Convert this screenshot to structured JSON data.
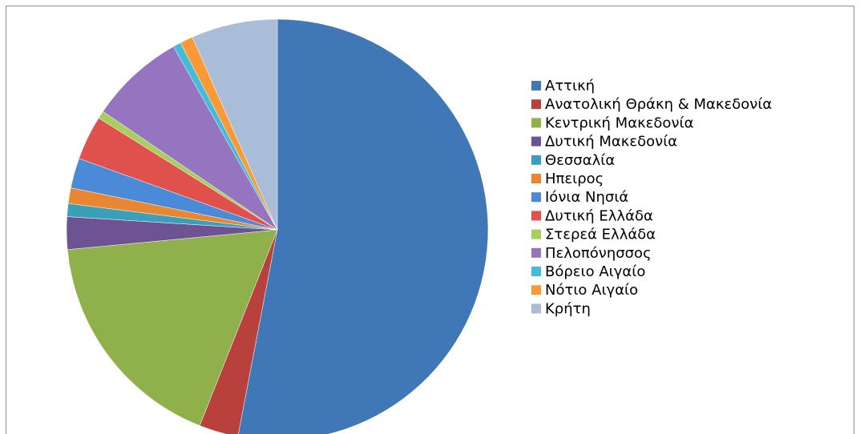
{
  "chart_data": {
    "type": "pie",
    "categories": [
      "Αττική",
      "Ανατολική Θράκη & Μακεδονία",
      "Κεντρική Μακεδονία",
      "Δυτική Μακεδονία",
      "Θεσσαλία",
      "Ηπειρος",
      "Ιόνια Νησιά",
      "Δυτική Ελλάδα",
      "Στερεά Ελλάδα",
      "Πελοπόνησσος",
      "Βόρειο Αιγαίο",
      "Νότιο Αιγαίο",
      "Κρήτη"
    ],
    "values": [
      53,
      3,
      17.5,
      2.5,
      1,
      1.2,
      2.3,
      3.4,
      0.6,
      7.3,
      0.6,
      1,
      6.6
    ],
    "colors": [
      "#3f77b7",
      "#b8413e",
      "#8fb04b",
      "#6e5394",
      "#3a9fb8",
      "#e98632",
      "#4a8ad6",
      "#e0504c",
      "#a8cf5e",
      "#9575c0",
      "#42bcd8",
      "#f99a36",
      "#a9bdd9"
    ],
    "legend": "right"
  }
}
